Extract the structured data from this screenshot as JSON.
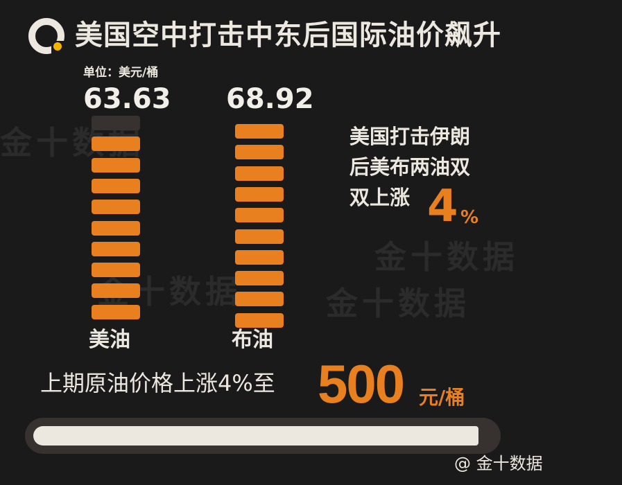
{
  "title": "美国空中打击中东后国际油价飙升",
  "watermark": "金十数据",
  "colors": {
    "accent": "#e8801f",
    "background": "#1a1a1a",
    "text": "#ece8df",
    "empty_segment": "#37322f",
    "logo_dot": "#f5b400"
  },
  "chart_data": {
    "type": "bar",
    "unit_label": "单位：美元/桶",
    "categories": [
      "美油",
      "布油"
    ],
    "values": [
      63.63,
      68.92
    ],
    "value_labels": [
      "63.63",
      "68.92"
    ],
    "segments_total": 10,
    "segments_filled": [
      9,
      10
    ]
  },
  "note": {
    "line1": "美国打击伊朗",
    "line2": "后美布两油双",
    "line3": "双上涨",
    "number": "4",
    "pct": "%"
  },
  "bottom": {
    "text": "上期原油价格上涨4%至",
    "value": "500",
    "unit": "元/桶",
    "progress_fraction": 0.97
  },
  "credit": "@ 金十数据"
}
